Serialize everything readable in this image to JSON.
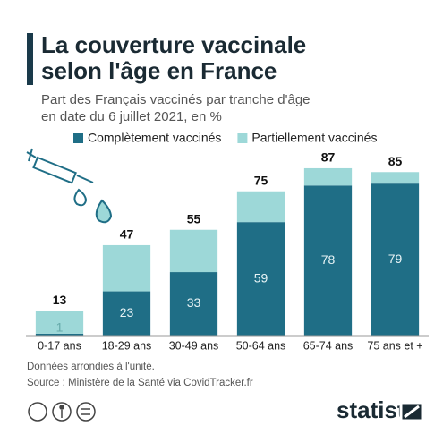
{
  "chart_data": {
    "type": "stacked_bar",
    "title": [
      "La couverture vaccinale",
      "selon l'âge en France"
    ],
    "subtitle": [
      "Part des Français vaccinés par tranche d'âge",
      "en date du 6 juillet 2021, en %"
    ],
    "categories": [
      "0-17 ans",
      "18-29 ans",
      "30-49 ans",
      "50-64 ans",
      "65-74 ans",
      "75 ans et +"
    ],
    "series": [
      {
        "name": "Complètement vaccinés",
        "color": "#1f6e86",
        "values": [
          1,
          23,
          33,
          59,
          78,
          79
        ]
      },
      {
        "name": "Partiellement vaccinés",
        "color": "#9dd8d8",
        "values": [
          12,
          24,
          22,
          16,
          9,
          6
        ]
      }
    ],
    "totals": [
      13,
      47,
      55,
      75,
      87,
      85
    ],
    "ylim": [
      0,
      100
    ],
    "notes": [
      "Données arrondies à l'unité.",
      "Source : Ministère de la Santé via CovidTracker.fr"
    ],
    "logo": "statista"
  }
}
